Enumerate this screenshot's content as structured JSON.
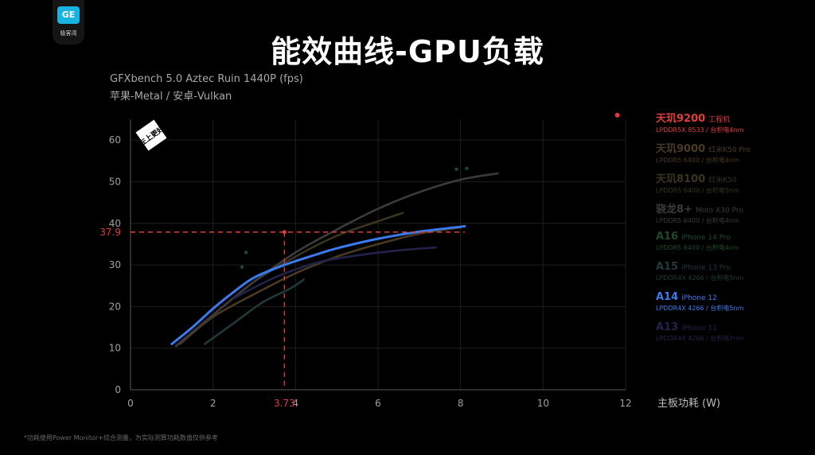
{
  "logo": {
    "badge": "GE",
    "text": "极客湾"
  },
  "title": "能效曲线-GPU负载",
  "subtitle_line1": "GFXbench 5.0 Aztec Ruin 1440P (fps)",
  "subtitle_line2": "苹果-Metal / 安卓-Vulkan",
  "corner_label": "左上更好",
  "footnote": "*功耗使用Power Monitor+综合测量，为实际测算功耗数值仅供参考",
  "chart_data": {
    "type": "line",
    "title": "能效曲线-GPU负载",
    "xlabel": "主板功耗 (W)",
    "ylabel": "",
    "xlim": [
      0,
      12
    ],
    "ylim": [
      0,
      65
    ],
    "x_ticks": [
      0,
      2,
      4,
      6,
      8,
      10,
      12
    ],
    "y_ticks": [
      0,
      10,
      20,
      30,
      40,
      50,
      60
    ],
    "grid": true,
    "legend_position": "right",
    "highlight": {
      "x": 3.73,
      "y": 37.9,
      "x_label": "3.73",
      "y_label": "37.9",
      "color": "#e23b3b"
    },
    "series": [
      {
        "name": "天玑9200",
        "device": "工程机",
        "spec": "LPDDR5X 8533 / 台积电4nm",
        "color": "#e23b3b",
        "highlight": true,
        "points": [
          [
            11.8,
            66
          ]
        ]
      },
      {
        "name": "天玑9000",
        "device": "红米K50 Pro",
        "spec": "LPDDR5 6400 / 台积电4nm",
        "color": "#4a3a22",
        "highlight": false,
        "points": [
          [
            1.2,
            11
          ],
          [
            2,
            17.5
          ],
          [
            3,
            23
          ],
          [
            4,
            28
          ],
          [
            5,
            32
          ],
          [
            6,
            35
          ],
          [
            7,
            37.5
          ],
          [
            8,
            39
          ]
        ]
      },
      {
        "name": "天玑8100",
        "device": "红米K50",
        "spec": "LPDDR5 6400 / 台积电5nm",
        "color": "#3a3520",
        "highlight": false,
        "points": [
          [
            1.1,
            10.5
          ],
          [
            2,
            18
          ],
          [
            3,
            26
          ],
          [
            4,
            32
          ],
          [
            5,
            37
          ],
          [
            6,
            40.5
          ],
          [
            6.6,
            42.5
          ]
        ]
      },
      {
        "name": "骁龙8+",
        "device": "Moto X30 Pro",
        "spec": "LPDDR5 6400 / 台积电4nm",
        "color": "#3b3b3b",
        "highlight": false,
        "points": [
          [
            1.1,
            10.5
          ],
          [
            2,
            18
          ],
          [
            3,
            26
          ],
          [
            4,
            33
          ],
          [
            5,
            38.5
          ],
          [
            6,
            43.5
          ],
          [
            7,
            47.5
          ],
          [
            8,
            50.5
          ],
          [
            8.9,
            52
          ]
        ]
      },
      {
        "name": "A16",
        "device": "iPhone 14 Pro",
        "spec": "LPDDR5 6400 / 台积电4nm",
        "color": "#1f4a2a",
        "highlight": false,
        "points": [
          [
            2.7,
            29.5
          ],
          [
            2.8,
            33
          ],
          [
            7.9,
            53
          ],
          [
            8.15,
            53.2
          ]
        ]
      },
      {
        "name": "A15",
        "device": "iPhone 13 Pro",
        "spec": "LPDDR4X 4266 / 台积电5nm",
        "color": "#21393a",
        "highlight": false,
        "points": [
          [
            1.8,
            11
          ],
          [
            2.5,
            16
          ],
          [
            3.2,
            21
          ],
          [
            3.9,
            24.5
          ],
          [
            4.2,
            26.5
          ]
        ]
      },
      {
        "name": "A14",
        "device": "iPhone 12",
        "spec": "LPDDR4X 4266 / 台积电5nm",
        "color": "#3b7bf0",
        "highlight": true,
        "points": [
          [
            1,
            11
          ],
          [
            1.5,
            15
          ],
          [
            2,
            19.5
          ],
          [
            2.5,
            23.5
          ],
          [
            3,
            27
          ],
          [
            3.73,
            30
          ],
          [
            4.5,
            32.5
          ],
          [
            5,
            34
          ],
          [
            6,
            36.3
          ],
          [
            7,
            38
          ],
          [
            8.1,
            39.3
          ]
        ]
      },
      {
        "name": "A13",
        "device": "iPhone 11",
        "spec": "LPDDR4X 4266 / 台积电7nm",
        "color": "#23234a",
        "highlight": false,
        "points": [
          [
            2.5,
            22
          ],
          [
            3.5,
            27
          ],
          [
            4.5,
            30.5
          ],
          [
            5.5,
            32.3
          ],
          [
            6.5,
            33.5
          ],
          [
            7.4,
            34.2
          ]
        ]
      }
    ]
  }
}
